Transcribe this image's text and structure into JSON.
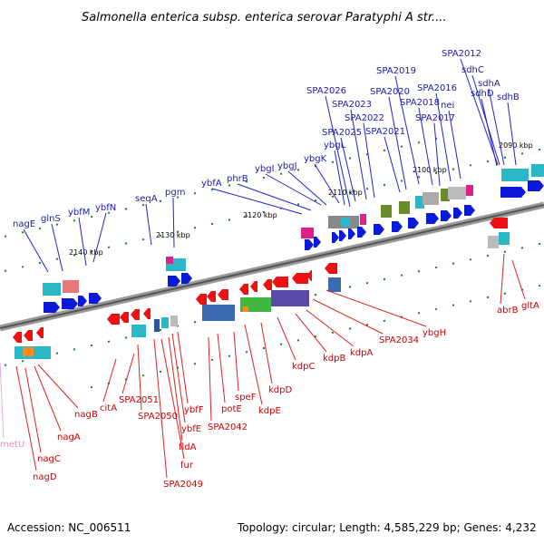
{
  "title": "Salmonella enterica subsp. enterica serovar Paratyphi A str....",
  "footer": {
    "accession": "Accession: NC_006511",
    "topology": "Topology: circular; Length: 4,585,229 bp; Genes: 4,232"
  },
  "kbp_marks": [
    {
      "text": "2090 kbp"
    },
    {
      "text": "2100 kbp"
    },
    {
      "text": "2110 kbp"
    },
    {
      "text": "2120 kbp"
    },
    {
      "text": "2130 kbp"
    },
    {
      "text": "2140 kbp"
    }
  ],
  "genes_top": [
    "SPA2012",
    "sdhC",
    "sdhA",
    "sdhD",
    "sdhB",
    "SPA2019",
    "SPA2016",
    "SPA2026",
    "SPA2020",
    "nei",
    "SPA2018",
    "SPA2023",
    "SPA2017",
    "SPA2022",
    "SPA2025",
    "SPA2021",
    "ybgL",
    "ybgK",
    "ybgJ",
    "ybgI",
    "phrB",
    "ybfA",
    "pgm",
    "seqA",
    "ybfN",
    "ybfM",
    "glnS",
    "nagE"
  ],
  "genes_bottom": [
    "abrB",
    "gltA",
    "ybgH",
    "SPA2034",
    "kdpA",
    "kdpB",
    "kdpC",
    "kdpD",
    "kdpE",
    "speF",
    "potE",
    "SPA2042",
    "ybfF",
    "ybfE",
    "fldA",
    "fur",
    "SPA2049",
    "SPA2050",
    "SPA2051",
    "citA",
    "nagB",
    "nagA",
    "nagC",
    "nagD",
    "metU"
  ],
  "colors": {
    "forward_gene": "#0a1ad8",
    "reverse_gene": "#ee1111",
    "genome_line": "#888888",
    "tick": "#2a7a2a"
  }
}
